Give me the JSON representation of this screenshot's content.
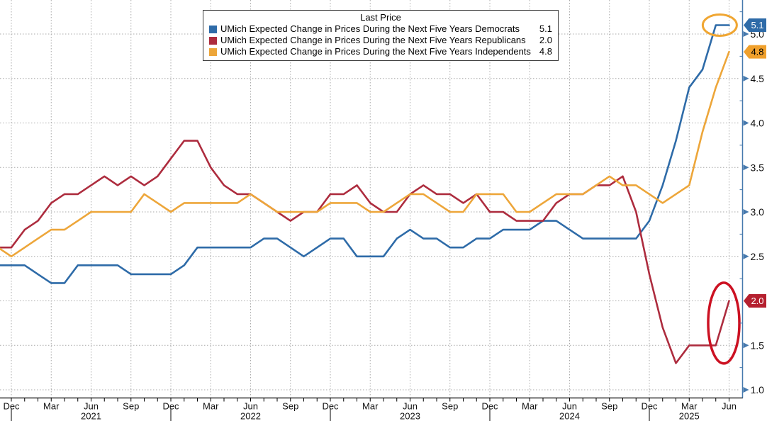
{
  "chart_data": {
    "type": "line",
    "legend_title": "Last Price",
    "legend_position": "top-center",
    "grid": "dotted",
    "ylim": [
      1.0,
      5.4
    ],
    "y_ticks_labeled": [
      5.0,
      4.5,
      4.0,
      3.5,
      3.0,
      2.5,
      1.5,
      1.0
    ],
    "y_ticks_minor": [
      1.25,
      1.75,
      2.25,
      2.75,
      3.25,
      3.75,
      4.25,
      4.75,
      5.25
    ],
    "x": [
      "Nov 2020",
      "Dec 2020",
      "Jan 2021",
      "Feb 2021",
      "Mar 2021",
      "Apr 2021",
      "May 2021",
      "Jun 2021",
      "Jul 2021",
      "Aug 2021",
      "Sep 2021",
      "Oct 2021",
      "Nov 2021",
      "Dec 2021",
      "Jan 2022",
      "Feb 2022",
      "Mar 2022",
      "Apr 2022",
      "May 2022",
      "Jun 2022",
      "Jul 2022",
      "Aug 2022",
      "Sep 2022",
      "Oct 2022",
      "Nov 2022",
      "Dec 2022",
      "Jan 2023",
      "Feb 2023",
      "Mar 2023",
      "Apr 2023",
      "May 2023",
      "Jun 2023",
      "Jul 2023",
      "Aug 2023",
      "Sep 2023",
      "Oct 2023",
      "Nov 2023",
      "Dec 2023",
      "Jan 2024",
      "Feb 2024",
      "Mar 2024",
      "Apr 2024",
      "May 2024",
      "Jun 2024",
      "Jul 2024",
      "Aug 2024",
      "Sep 2024",
      "Oct 2024",
      "Nov 2024",
      "Dec 2024",
      "Jan 2025",
      "Feb 2025",
      "Mar 2025",
      "Apr 2025",
      "May 2025",
      "Jun 2025"
    ],
    "x_quarter_ticks": {
      "indices": [
        1,
        4,
        7,
        10,
        13,
        16,
        19,
        22,
        25,
        28,
        31,
        34,
        37,
        40,
        43,
        46,
        49,
        52,
        55
      ],
      "labels": [
        "Dec",
        "Mar",
        "Jun",
        "Sep",
        "Dec",
        "Mar",
        "Jun",
        "Sep",
        "Dec",
        "Mar",
        "Jun",
        "Sep",
        "Dec",
        "Mar",
        "Jun",
        "Sep",
        "Dec",
        "Mar",
        "Jun"
      ]
    },
    "year_boundary_tick_indices": [
      1,
      13,
      25,
      37,
      49
    ],
    "year_labels": [
      {
        "text": "2021",
        "index": 7
      },
      {
        "text": "2022",
        "index": 19
      },
      {
        "text": "2023",
        "index": 31
      },
      {
        "text": "2024",
        "index": 43
      },
      {
        "text": "2025",
        "index": 52
      }
    ],
    "series": [
      {
        "key": "democrats",
        "name": "UMich Expected Change in Prices During the Next Five Years Democrats",
        "last_price": "5.1",
        "color": "#2e6ba8",
        "badge_bg": "#2e6ba8",
        "badge_fg": "#ffffff",
        "values": [
          2.4,
          2.4,
          2.4,
          2.3,
          2.2,
          2.2,
          2.4,
          2.4,
          2.4,
          2.4,
          2.3,
          2.3,
          2.3,
          2.3,
          2.4,
          2.6,
          2.6,
          2.6,
          2.6,
          2.6,
          2.7,
          2.7,
          2.6,
          2.5,
          2.6,
          2.7,
          2.7,
          2.5,
          2.5,
          2.5,
          2.7,
          2.8,
          2.7,
          2.7,
          2.6,
          2.6,
          2.7,
          2.7,
          2.8,
          2.8,
          2.8,
          2.9,
          2.9,
          2.8,
          2.7,
          2.7,
          2.7,
          2.7,
          2.7,
          2.9,
          3.3,
          3.8,
          4.4,
          4.6,
          5.1,
          5.1
        ]
      },
      {
        "key": "republicans",
        "name": "UMich Expected Change in Prices During the Next Five Years Republicans",
        "last_price": "2.0",
        "color": "#ad2c3e",
        "badge_bg": "#b5202f",
        "badge_fg": "#ffffff",
        "values": [
          2.6,
          2.6,
          2.8,
          2.9,
          3.1,
          3.2,
          3.2,
          3.3,
          3.4,
          3.3,
          3.4,
          3.3,
          3.4,
          3.6,
          3.8,
          3.8,
          3.5,
          3.3,
          3.2,
          3.2,
          3.1,
          3.0,
          2.9,
          3.0,
          3.0,
          3.2,
          3.2,
          3.3,
          3.1,
          3.0,
          3.0,
          3.2,
          3.3,
          3.2,
          3.2,
          3.1,
          3.2,
          3.0,
          3.0,
          2.9,
          2.9,
          2.9,
          3.1,
          3.2,
          3.2,
          3.3,
          3.3,
          3.4,
          3.0,
          2.3,
          1.7,
          1.3,
          1.5,
          1.5,
          1.5,
          2.0
        ]
      },
      {
        "key": "independents",
        "name": "UMich Expected Change in Prices During the Next Five Years Independents",
        "last_price": "4.8",
        "color": "#eda63a",
        "badge_bg": "#f0a02c",
        "badge_fg": "#000000",
        "values": [
          2.6,
          2.5,
          2.6,
          2.7,
          2.8,
          2.8,
          2.9,
          3.0,
          3.0,
          3.0,
          3.0,
          3.2,
          3.1,
          3.0,
          3.1,
          3.1,
          3.1,
          3.1,
          3.1,
          3.2,
          3.1,
          3.0,
          3.0,
          3.0,
          3.0,
          3.1,
          3.1,
          3.1,
          3.0,
          3.0,
          3.1,
          3.2,
          3.2,
          3.1,
          3.0,
          3.0,
          3.2,
          3.2,
          3.2,
          3.0,
          3.0,
          3.1,
          3.2,
          3.2,
          3.2,
          3.3,
          3.4,
          3.3,
          3.3,
          3.2,
          3.1,
          3.2,
          3.3,
          3.9,
          4.4,
          4.8
        ]
      }
    ],
    "annotations": [
      {
        "shape": "ellipse",
        "target": "democrats-line-end",
        "color": "#f0a632",
        "cx_index": 54.3,
        "cy_value": 5.1,
        "rx": 24,
        "ry": 15,
        "stroke_width": 3
      },
      {
        "shape": "ellipse",
        "target": "republicans-line-end",
        "color": "#cc1122",
        "cx_index": 54.6,
        "cy_value": 1.75,
        "rx": 22,
        "ry": 57,
        "stroke_width": 3.5
      }
    ],
    "colors": {
      "axis_spine": "#4679ad",
      "gridline": "#a9a9a9",
      "x_axis_line": "#000000",
      "tick_label": "#111111"
    }
  }
}
